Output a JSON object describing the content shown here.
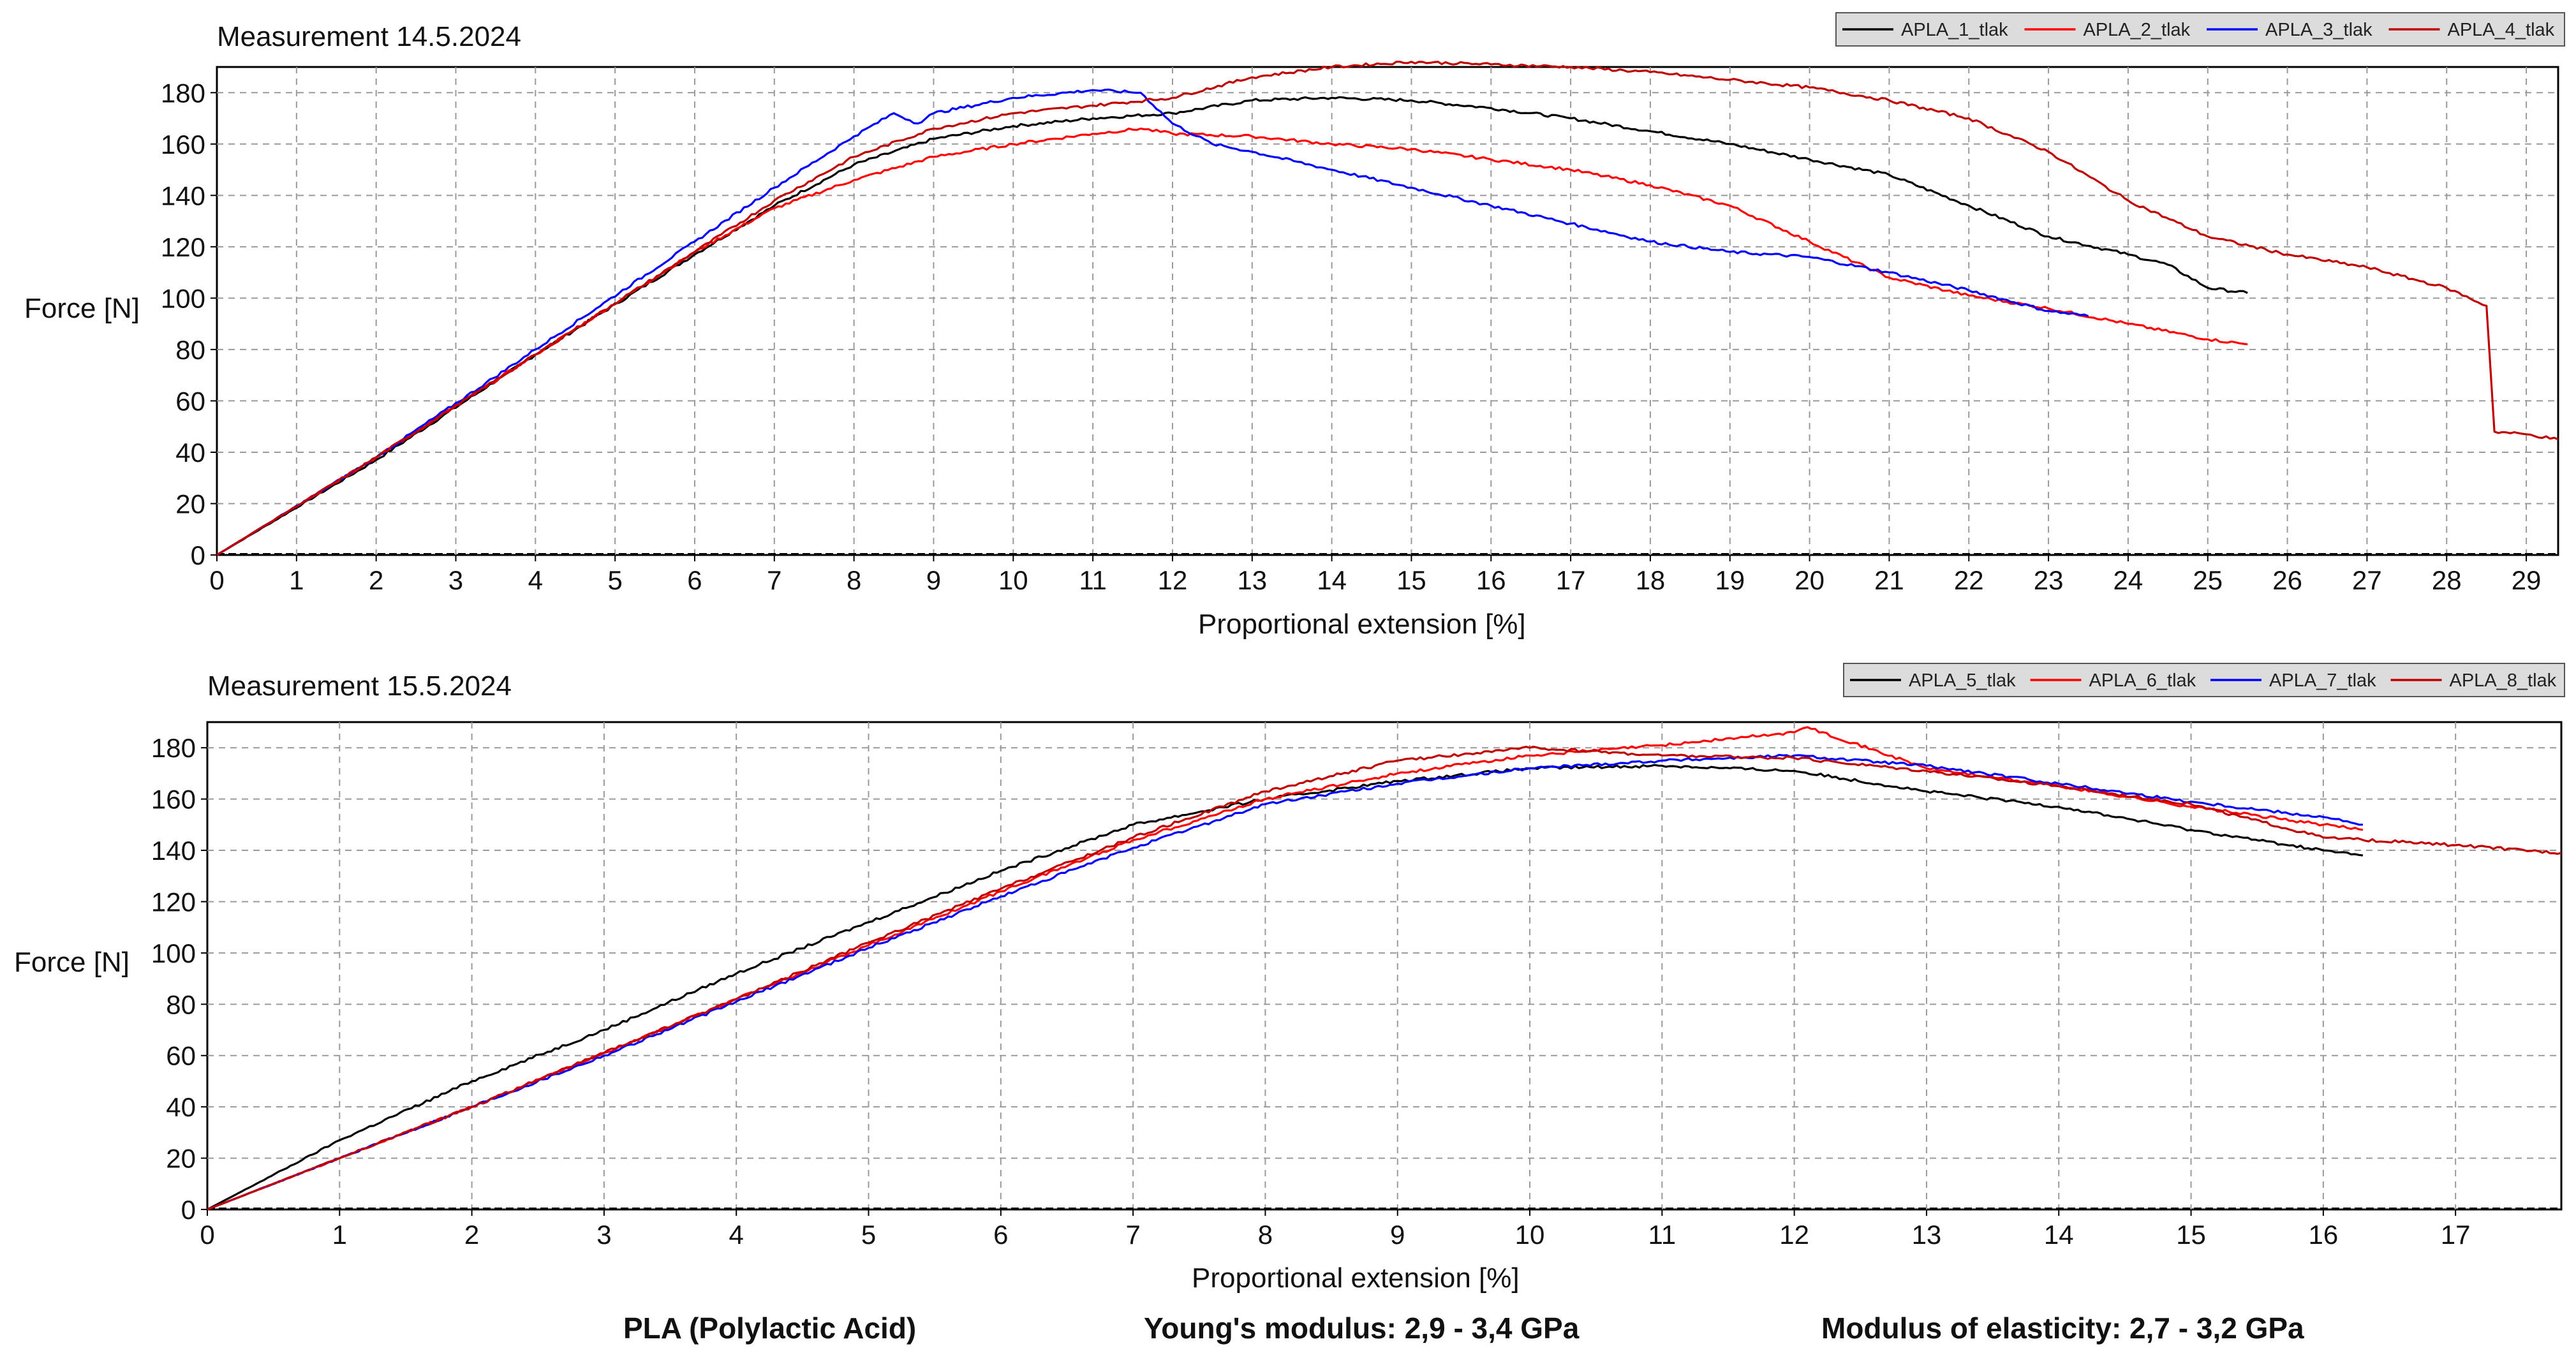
{
  "chart_data": [
    {
      "type": "line",
      "title": "Measurement 14.5.2024",
      "xlabel": "Proportional extension [%]",
      "ylabel": "Force [N]",
      "xlim": [
        0,
        29.4
      ],
      "ylim": [
        0,
        190
      ],
      "xticks": [
        0,
        1,
        2,
        3,
        4,
        5,
        6,
        7,
        8,
        9,
        10,
        11,
        12,
        13,
        14,
        15,
        16,
        17,
        18,
        19,
        20,
        21,
        22,
        23,
        24,
        25,
        26,
        27,
        28,
        29
      ],
      "yticks": [
        0,
        20,
        40,
        60,
        80,
        100,
        120,
        140,
        160,
        180
      ],
      "grid": true,
      "legend": "top-right",
      "series": [
        {
          "name": "APLA_1_tlak",
          "color": "#000000",
          "x": [
            0,
            2,
            4,
            6,
            7,
            8,
            9,
            10,
            11,
            12,
            13,
            14,
            15,
            16,
            17,
            18,
            19,
            20,
            21,
            22,
            23,
            24,
            24.5,
            25,
            25.5
          ],
          "y": [
            0,
            37,
            78,
            117,
            136,
            152,
            162,
            167,
            170,
            172,
            177,
            178,
            177,
            174,
            170,
            165,
            160,
            154,
            148,
            136,
            124,
            117,
            113,
            104,
            102
          ]
        },
        {
          "name": "APLA_2_tlak",
          "color": "#ff0000",
          "x": [
            0,
            2,
            4,
            6,
            7,
            8,
            9,
            10,
            11,
            11.6,
            12,
            13,
            14,
            15,
            16,
            17,
            18,
            19,
            20,
            21,
            22,
            23,
            24,
            25,
            25.5
          ],
          "y": [
            0,
            38,
            78,
            118,
            135,
            146,
            155,
            160,
            164,
            166,
            164,
            163,
            160,
            158,
            154,
            150,
            144,
            136,
            122,
            108,
            101,
            96,
            90,
            84,
            82
          ]
        },
        {
          "name": "APLA_3_tlak",
          "color": "#0000ff",
          "x": [
            0,
            2,
            4,
            6,
            7,
            8,
            8.5,
            8.8,
            9,
            10,
            11,
            11.6,
            12,
            12.5,
            13,
            14,
            15,
            16,
            17,
            18,
            19,
            20,
            21,
            22,
            23,
            23.5
          ],
          "y": [
            0,
            38,
            80,
            122,
            143,
            163,
            172,
            168,
            172,
            178,
            181,
            180,
            168,
            160,
            157,
            150,
            143,
            136,
            129,
            122,
            118,
            116,
            110,
            103,
            95,
            93
          ]
        },
        {
          "name": "APLA_4_tlak",
          "color": "#c00000",
          "x": [
            0,
            2,
            4,
            6,
            7,
            8,
            9,
            10,
            11,
            12,
            13,
            14,
            15,
            16,
            17,
            18,
            19,
            20,
            21,
            22,
            23,
            24,
            25,
            26,
            27,
            28,
            28.5,
            28.6,
            29,
            29.4
          ],
          "y": [
            0,
            38,
            78,
            118,
            138,
            155,
            166,
            172,
            175,
            178,
            186,
            190,
            192,
            191,
            190,
            188,
            185,
            182,
            177,
            170,
            157,
            138,
            124,
            117,
            112,
            104,
            97,
            48,
            47,
            45
          ]
        }
      ]
    },
    {
      "type": "line",
      "title": "Measurement 15.5.2024",
      "xlabel": "Proportional extension [%]",
      "ylabel": "Force [N]",
      "xlim": [
        0,
        17.8
      ],
      "ylim": [
        0,
        190
      ],
      "xticks": [
        0,
        1,
        2,
        3,
        4,
        5,
        6,
        7,
        8,
        9,
        10,
        11,
        12,
        13,
        14,
        15,
        16,
        17
      ],
      "yticks": [
        0,
        20,
        40,
        60,
        80,
        100,
        120,
        140,
        160,
        180
      ],
      "grid": true,
      "legend": "top-right",
      "series": [
        {
          "name": "APLA_5_tlak",
          "color": "#000000",
          "x": [
            0,
            1,
            2,
            3,
            4,
            5,
            6,
            7,
            8,
            9,
            10,
            11,
            12,
            13,
            14,
            15,
            16,
            16.3
          ],
          "y": [
            0,
            27,
            50,
            70,
            92,
            112,
            132,
            150,
            160,
            167,
            172,
            173,
            171,
            163,
            157,
            148,
            140,
            138
          ]
        },
        {
          "name": "APLA_6_tlak",
          "color": "#ff0000",
          "x": [
            0,
            1,
            2,
            3,
            4,
            5,
            6,
            7,
            8,
            9,
            10,
            11,
            12,
            12.1,
            13,
            14,
            15,
            16,
            16.3
          ],
          "y": [
            0,
            20,
            40,
            61,
            82,
            103,
            124,
            144,
            160,
            170,
            177,
            181,
            186,
            188,
            172,
            165,
            157,
            150,
            148
          ]
        },
        {
          "name": "APLA_7_tlak",
          "color": "#0000ff",
          "x": [
            0,
            1,
            2,
            3,
            4,
            5,
            6,
            7,
            8,
            9,
            10,
            11,
            12,
            13,
            14,
            15,
            16,
            16.3
          ],
          "y": [
            0,
            20,
            40,
            60,
            81,
            102,
            122,
            141,
            158,
            166,
            172,
            175,
            177,
            173,
            166,
            159,
            153,
            150
          ]
        },
        {
          "name": "APLA_8_tlak",
          "color": "#c00000",
          "x": [
            0,
            1,
            2,
            3,
            4,
            5,
            6,
            7,
            8,
            9,
            10,
            11,
            12,
            13,
            14,
            15,
            16,
            17,
            17.8
          ],
          "y": [
            0,
            20,
            40,
            61,
            82,
            104,
            125,
            145,
            163,
            175,
            180,
            177,
            176,
            171,
            165,
            158,
            145,
            142,
            139
          ]
        }
      ]
    }
  ],
  "footer": {
    "material": "PLA (Polylactic Acid)",
    "young": "Young's modulus: 2,9 - 3,4 GPa",
    "elastic": "Modulus of elasticity: 2,7 - 3,2 GPa"
  }
}
